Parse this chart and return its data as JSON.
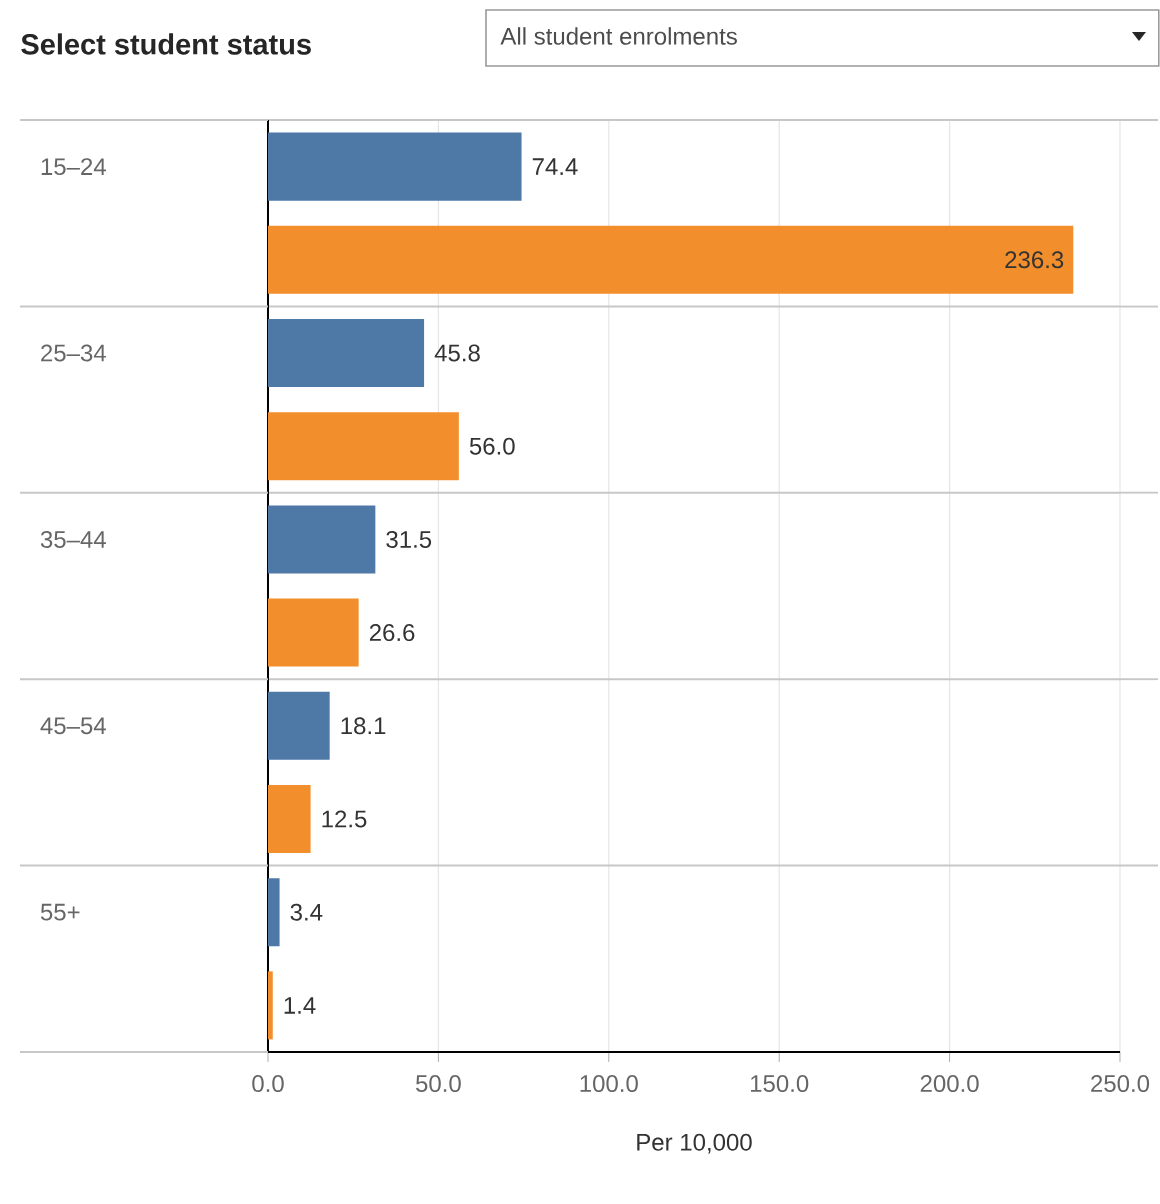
{
  "chart_data": {
    "type": "bar",
    "orientation": "horizontal",
    "title": "Select student status",
    "annotations": [
      "All student enrolments"
    ],
    "xlabel": "Per 10,000",
    "categories": [
      "15–24",
      "25–34",
      "35–44",
      "45–54",
      "55+"
    ],
    "series": [
      {
        "color": "#4e79a7",
        "values": [
          74.4,
          45.8,
          31.5,
          18.1,
          3.4
        ],
        "value_labels": [
          "74.4",
          "45.8",
          "31.5",
          "18.1",
          "3.4"
        ]
      },
      {
        "color": "#f28e2b",
        "values": [
          236.3,
          56.0,
          26.6,
          12.5,
          1.4
        ],
        "value_labels": [
          "236.3",
          "56.0",
          "26.6",
          "12.5",
          "1.4"
        ]
      }
    ],
    "xlim": [
      0,
      250
    ],
    "xticks": [
      {
        "value": 0,
        "label": "0.0"
      },
      {
        "value": 50,
        "label": "50.0"
      },
      {
        "value": 100,
        "label": "100.0"
      },
      {
        "value": 150,
        "label": "150.0"
      },
      {
        "value": 200,
        "label": "200.0"
      },
      {
        "value": 250,
        "label": "250.0"
      }
    ],
    "grid": "x"
  }
}
